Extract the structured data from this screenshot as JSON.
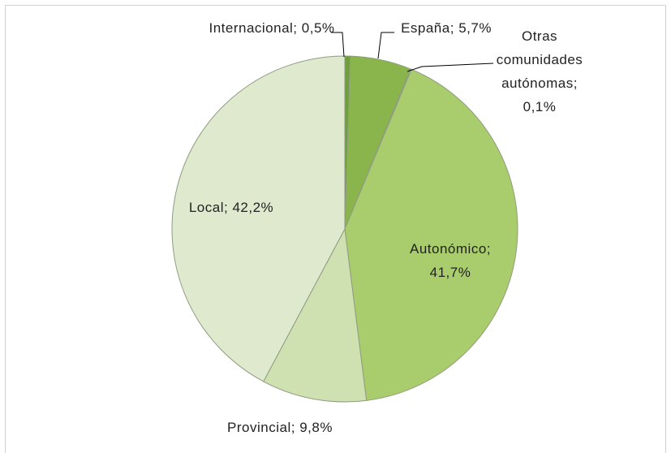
{
  "chart_data": {
    "type": "pie",
    "categories": [
      "Internacional;",
      "España;",
      "Otras comunidades autónomas;",
      "Autonómico;",
      "Provincial;",
      "Local;"
    ],
    "values": [
      0.5,
      5.7,
      0.1,
      41.7,
      9.8,
      42.2
    ],
    "value_labels": [
      "0,5%",
      "5,7%",
      "0,1%",
      "41,7%",
      "9,8%",
      "42,2%"
    ],
    "colors": [
      "#6f9e3c",
      "#8ab54c",
      "#9cc25c",
      "#a9cd6c",
      "#cfe1b1",
      "#dfe9cd"
    ]
  }
}
